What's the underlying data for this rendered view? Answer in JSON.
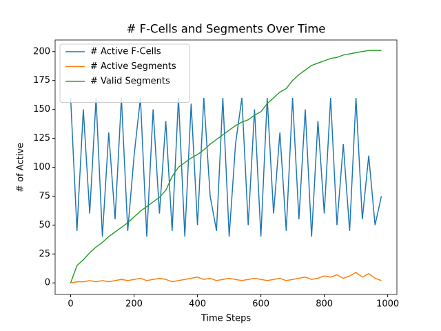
{
  "chart_data": {
    "type": "line",
    "title": "# F-Cells and Segments Over Time",
    "xlabel": "Time Steps",
    "ylabel": "# of Active",
    "x": [
      0,
      20,
      40,
      60,
      80,
      100,
      120,
      140,
      160,
      180,
      200,
      220,
      240,
      260,
      280,
      300,
      320,
      340,
      360,
      380,
      400,
      420,
      440,
      460,
      480,
      500,
      520,
      540,
      560,
      580,
      600,
      620,
      640,
      660,
      680,
      700,
      720,
      740,
      760,
      780,
      800,
      820,
      840,
      860,
      880,
      900,
      920,
      940,
      960,
      980
    ],
    "series": [
      {
        "name": "# Active F-Cells",
        "color": "#1f77b4",
        "values": [
          160,
          45,
          150,
          60,
          160,
          40,
          130,
          55,
          160,
          45,
          110,
          160,
          40,
          150,
          60,
          140,
          45,
          160,
          40,
          155,
          50,
          160,
          75,
          45,
          160,
          40,
          120,
          160,
          50,
          150,
          40,
          160,
          60,
          130,
          45,
          160,
          55,
          150,
          40,
          140,
          60,
          160,
          50,
          120,
          45,
          160,
          55,
          110,
          50,
          75
        ]
      },
      {
        "name": "# Active Segments",
        "color": "#ff7f0e",
        "values": [
          0,
          1,
          1,
          2,
          1,
          2,
          1,
          2,
          3,
          2,
          3,
          4,
          2,
          3,
          4,
          3,
          1,
          2,
          3,
          4,
          5,
          3,
          4,
          2,
          3,
          4,
          3,
          2,
          3,
          4,
          3,
          2,
          3,
          4,
          2,
          3,
          4,
          5,
          3,
          4,
          6,
          5,
          7,
          4,
          6,
          9,
          5,
          8,
          4,
          2
        ]
      },
      {
        "name": "# Valid Segments",
        "color": "#2ca02c",
        "values": [
          0,
          15,
          20,
          26,
          31,
          35,
          40,
          44,
          48,
          52,
          57,
          62,
          66,
          70,
          74,
          80,
          92,
          100,
          104,
          108,
          111,
          115,
          120,
          124,
          128,
          132,
          136,
          139,
          141,
          145,
          148,
          155,
          160,
          165,
          168,
          175,
          180,
          184,
          188,
          190,
          192,
          194,
          195,
          197,
          198,
          199,
          200,
          201,
          201,
          201
        ]
      }
    ],
    "xlim": [
      -49,
      1029
    ],
    "xticks": [
      0,
      200,
      400,
      600,
      800,
      1000
    ],
    "ylim": [
      -10,
      210
    ],
    "yticks": [
      0,
      25,
      50,
      75,
      100,
      125,
      150,
      175,
      200
    ],
    "legend": "upper left",
    "grid": false
  }
}
